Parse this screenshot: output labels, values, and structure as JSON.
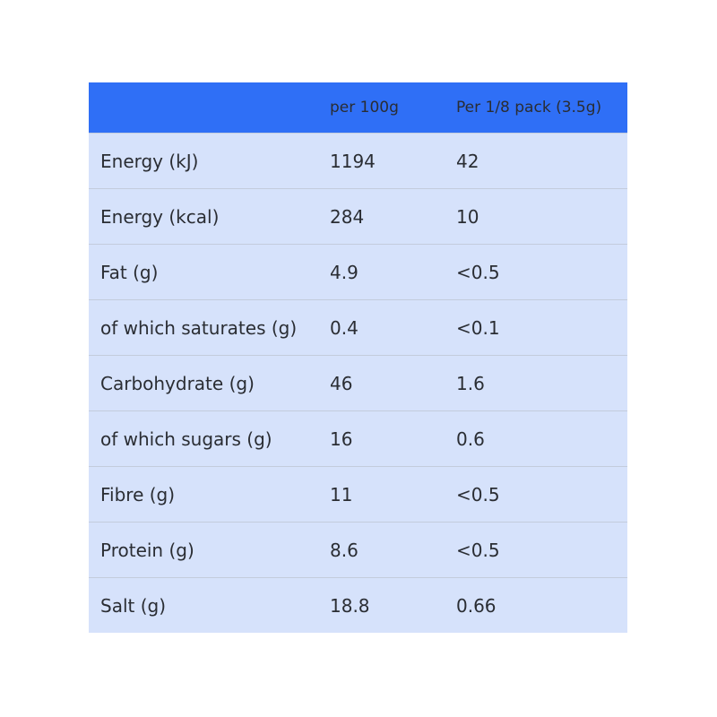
{
  "table": {
    "header": [
      "per 100g",
      "Per 1/8 pack (3.5g)"
    ],
    "rows": [
      [
        "Energy (kJ)",
        "1194",
        "42"
      ],
      [
        "Energy (kcal)",
        "284",
        "10"
      ],
      [
        "Fat (g)",
        "4.9",
        "<0.5"
      ],
      [
        "of which saturates (g)",
        "0.4",
        "<0.1"
      ],
      [
        "Carbohydrate (g)",
        "46",
        "1.6"
      ],
      [
        "of which sugars (g)",
        "16",
        "0.6"
      ],
      [
        "Fibre (g)",
        "11",
        "<0.5"
      ],
      [
        "Protein (g)",
        "8.6",
        "<0.5"
      ],
      [
        "Salt (g)",
        "18.8",
        "0.66"
      ]
    ]
  }
}
